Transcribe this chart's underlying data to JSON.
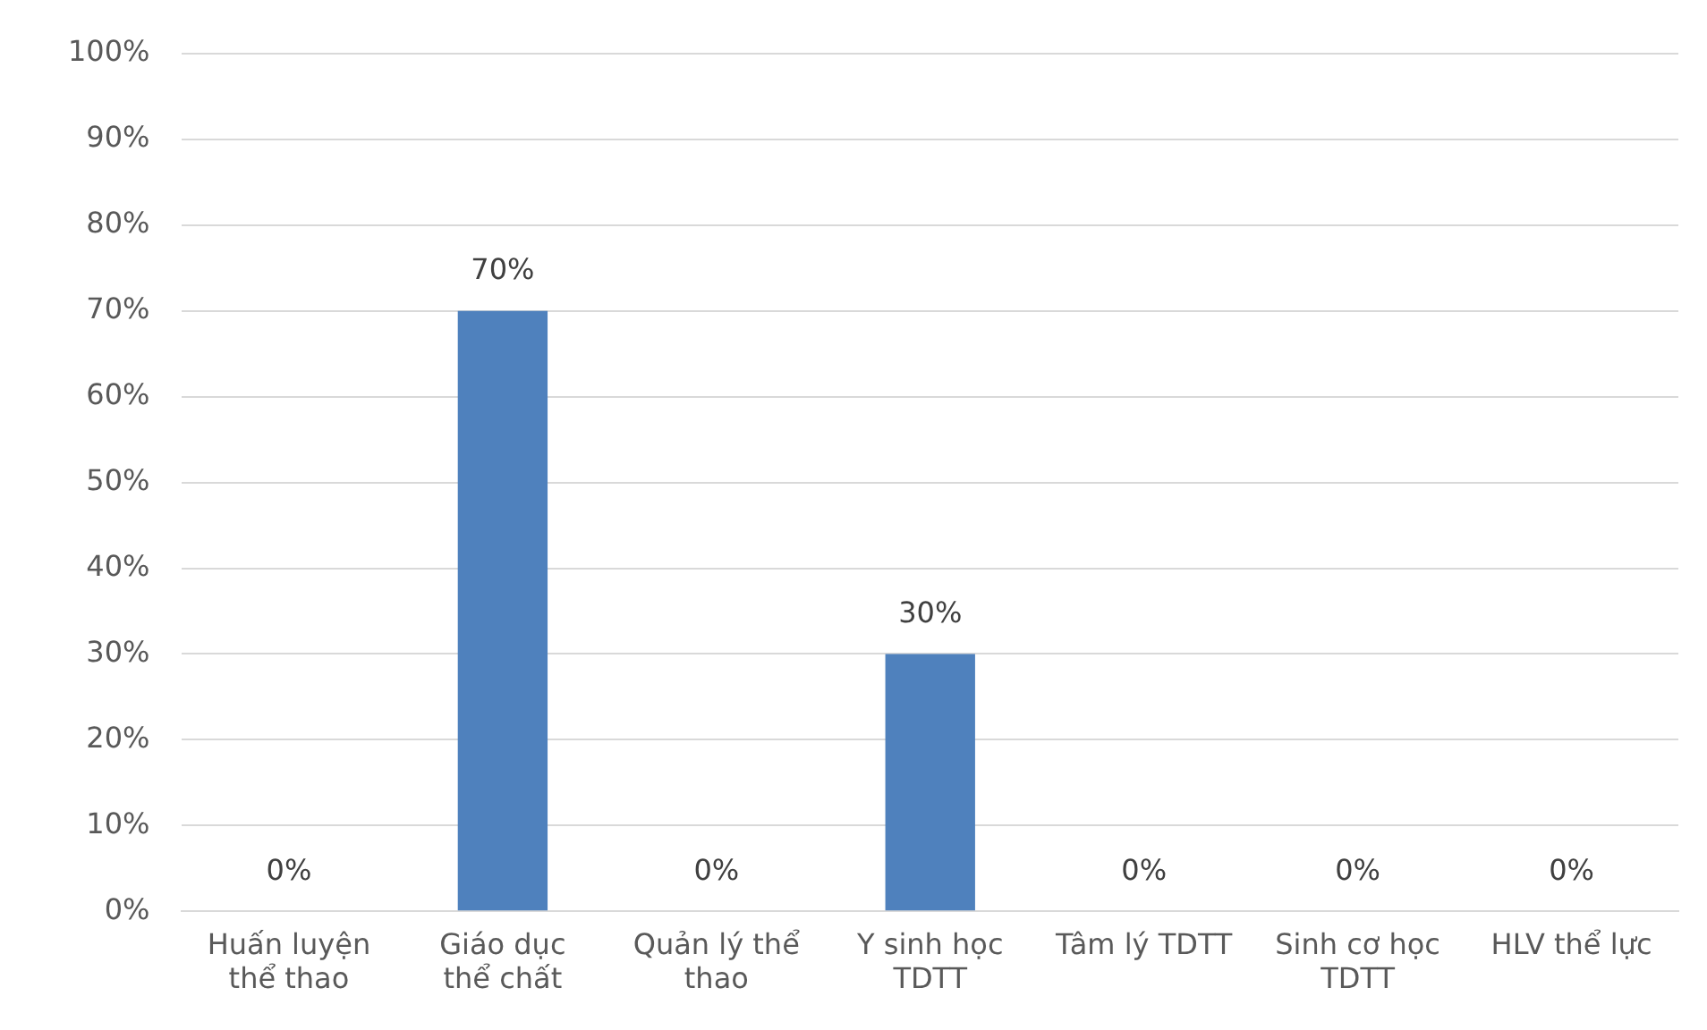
{
  "chart_data": {
    "type": "bar",
    "categories": [
      "Huấn luyện thể thao",
      "Giáo dục thể chất",
      "Quản lý thể thao",
      "Y sinh học TDTT",
      "Tâm lý TDTT",
      "Sinh cơ học TDTT",
      "HLV thể lực"
    ],
    "values": [
      0,
      70,
      0,
      30,
      0,
      0,
      0
    ],
    "value_labels": [
      "0%",
      "70%",
      "0%",
      "30%",
      "0%",
      "0%",
      "0%"
    ],
    "color": "#4f81bd",
    "ylim": [
      0,
      100
    ],
    "yticks": [
      {
        "value": 0,
        "label": "0%"
      },
      {
        "value": 10,
        "label": "10%"
      },
      {
        "value": 20,
        "label": "20%"
      },
      {
        "value": 30,
        "label": "30%"
      },
      {
        "value": 40,
        "label": "40%"
      },
      {
        "value": 50,
        "label": "50%"
      },
      {
        "value": 60,
        "label": "60%"
      },
      {
        "value": 70,
        "label": "70%"
      },
      {
        "value": 80,
        "label": "80%"
      },
      {
        "value": 90,
        "label": "90%"
      },
      {
        "value": 100,
        "label": "100%"
      }
    ],
    "grid": "y"
  }
}
